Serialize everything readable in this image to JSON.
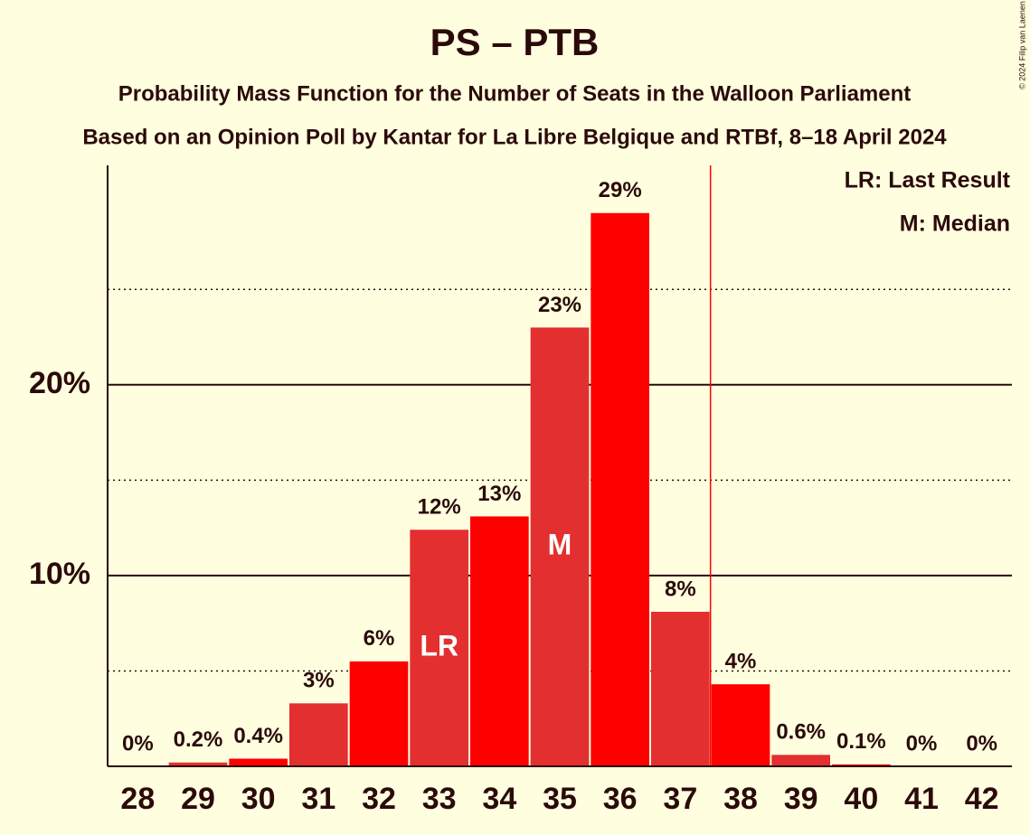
{
  "chart_data": {
    "type": "bar",
    "title": "PS – PTB",
    "subtitle": "Probability Mass Function for the Number of Seats in the Walloon Parliament",
    "subtitle2": "Based on an Opinion Poll by Kantar for La Libre Belgique and RTBf, 8–18 April 2024",
    "copyright": "© 2024 Filip van Laenen",
    "categories": [
      "28",
      "29",
      "30",
      "31",
      "32",
      "33",
      "34",
      "35",
      "36",
      "37",
      "38",
      "39",
      "40",
      "41",
      "42"
    ],
    "values": [
      0,
      0.2,
      0.4,
      3.3,
      5.5,
      12.4,
      13.1,
      23,
      29,
      8.1,
      4.3,
      0.6,
      0.1,
      0,
      0
    ],
    "value_labels": [
      "0%",
      "0.2%",
      "0.4%",
      "3%",
      "6%",
      "12%",
      "13%",
      "23%",
      "29%",
      "8%",
      "4%",
      "0.6%",
      "0.1%",
      "0%",
      "0%"
    ],
    "colors": [
      "#ff0000",
      "#e32f2f",
      "#ff0000",
      "#e32f2f",
      "#ff0000",
      "#e32f2f",
      "#ff0000",
      "#e32f2f",
      "#ff0000",
      "#e32f2f",
      "#ff0000",
      "#e32f2f",
      "#ff0000",
      "#e32f2f",
      "#ff0000"
    ],
    "ylim": [
      0,
      31.5
    ],
    "yticks": [
      {
        "value": 10,
        "label": "10%"
      },
      {
        "value": 20,
        "label": "20%"
      }
    ],
    "minor_yticks": [
      5,
      15,
      25
    ],
    "grid": true,
    "bar_annotations": [
      {
        "label": "LR",
        "category": "33"
      },
      {
        "label": "M",
        "category": "35"
      }
    ],
    "legend_notes": [
      "LR: Last Result",
      "M: Median"
    ],
    "vline_after_category": "37",
    "vline_color": "#ff0000"
  }
}
